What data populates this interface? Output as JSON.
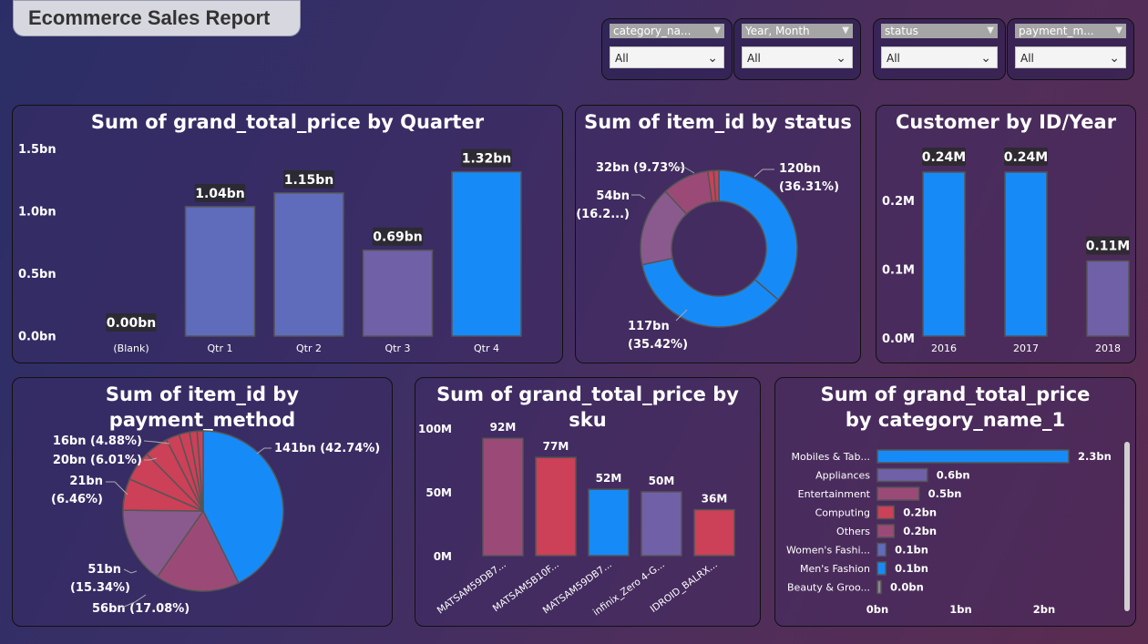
{
  "report_title": "Ecommerce Sales Report",
  "slicers": [
    {
      "header": "category_na...",
      "value": "All"
    },
    {
      "header": "Year, Month",
      "value": "All"
    },
    {
      "header": "status",
      "value": "All"
    },
    {
      "header": "payment_m...",
      "value": "All"
    }
  ],
  "colors": {
    "blue": "#168bf7",
    "slate": "#5f6cbc",
    "purple": "#7060a8",
    "mauve": "#8a5a8e",
    "rose": "#9b4a78",
    "red": "#cc4058"
  },
  "chart_data": [
    {
      "type": "bar",
      "title": "Sum of grand_total_price by Quarter",
      "categories": [
        "(Blank)",
        "Qtr 1",
        "Qtr 2",
        "Qtr 3",
        "Qtr 4"
      ],
      "values": [
        0.0,
        1.04,
        1.15,
        0.69,
        1.32
      ],
      "data_labels": [
        "0.00bn",
        "1.04bn",
        "1.15bn",
        "0.69bn",
        "1.32bn"
      ],
      "y_ticks": [
        "1.5bn",
        "1.0bn",
        "0.5bn",
        "0.0bn"
      ],
      "ylim": [
        0,
        1.5
      ]
    },
    {
      "type": "pie",
      "title": "Sum of item_id by status",
      "slices": [
        {
          "value": 120,
          "pct": 36.31,
          "label": "120bn",
          "label2": "(36.31%)"
        },
        {
          "value": 117,
          "pct": 35.42,
          "label": "117bn",
          "label2": "(35.42%)"
        },
        {
          "value": 54,
          "pct": 16.2,
          "label": "54bn",
          "label2": "(16.2...)"
        },
        {
          "value": 32,
          "pct": 9.73,
          "label": "32bn (9.73%)",
          "label2": ""
        },
        {
          "value": 4,
          "pct": 1.2,
          "label": "",
          "label2": ""
        },
        {
          "value": 3.5,
          "pct": 1.1,
          "label": "",
          "label2": ""
        }
      ]
    },
    {
      "type": "bar",
      "title": "Customer by ID/Year",
      "categories": [
        "2016",
        "2017",
        "2018"
      ],
      "values": [
        0.24,
        0.24,
        0.11
      ],
      "data_labels": [
        "0.24M",
        "0.24M",
        "0.11M"
      ],
      "y_ticks": [
        "0.2M",
        "0.1M",
        "0.0M"
      ],
      "ylim": [
        0,
        0.28
      ]
    },
    {
      "type": "pie",
      "title": "Sum of item_id by payment_method",
      "slices": [
        {
          "value": 141,
          "pct": 42.74,
          "label": "141bn (42.74%)"
        },
        {
          "value": 56,
          "pct": 17.08,
          "label": "56bn (17.08%)"
        },
        {
          "value": 51,
          "pct": 15.34,
          "label": "51bn",
          "label2": "(15.34%)"
        },
        {
          "value": 21,
          "pct": 6.46,
          "label": "21bn",
          "label2": "(6.46%)"
        },
        {
          "value": 20,
          "pct": 6.01,
          "label": "20bn (6.01%)"
        },
        {
          "value": 16,
          "pct": 4.88,
          "label": "16bn (4.88%)"
        },
        {
          "value": 9,
          "pct": 2.7,
          "label": ""
        },
        {
          "value": 7,
          "pct": 2.1,
          "label": ""
        },
        {
          "value": 5,
          "pct": 1.5,
          "label": ""
        },
        {
          "value": 4,
          "pct": 1.2,
          "label": ""
        }
      ]
    },
    {
      "type": "bar",
      "title": "Sum of grand_total_price by sku",
      "categories": [
        "MATSAM59DB7...",
        "MATSAM5B10F...",
        "MATSAM59DB7...",
        "infinix_Zero 4-G...",
        "IDROID_BALRX..."
      ],
      "values": [
        92,
        77,
        52,
        50,
        36
      ],
      "data_labels": [
        "92M",
        "77M",
        "52M",
        "50M",
        "36M"
      ],
      "y_ticks": [
        "100M",
        "50M",
        "0M"
      ],
      "ylim": [
        0,
        100
      ]
    },
    {
      "type": "bar",
      "orientation": "horizontal",
      "title": "Sum of grand_total_price by category_name_1",
      "categories": [
        "Mobiles & Tab...",
        "Appliances",
        "Entertainment",
        "Computing",
        "Others",
        "Women's Fashi...",
        "Men's Fashion",
        "Beauty & Groo..."
      ],
      "values": [
        2.3,
        0.6,
        0.5,
        0.2,
        0.2,
        0.1,
        0.1,
        0.0
      ],
      "data_labels": [
        "2.3bn",
        "0.6bn",
        "0.5bn",
        "0.2bn",
        "0.2bn",
        "0.1bn",
        "0.1bn",
        "0.0bn"
      ],
      "x_ticks": [
        "0bn",
        "1bn",
        "2bn"
      ],
      "xlim": [
        0,
        2.3
      ]
    }
  ]
}
